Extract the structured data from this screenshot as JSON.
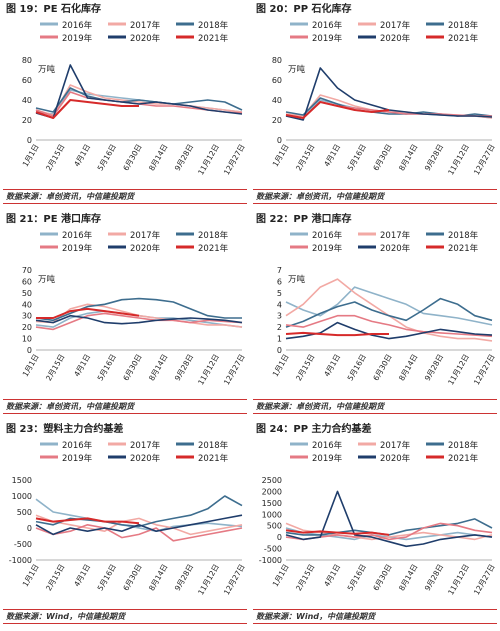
{
  "figures": [
    {
      "title": "图 19：PE 石化库存",
      "source": "数据来源：卓创资讯，中信建投期货"
    },
    {
      "title": "图 20：PP 石化库存",
      "source": "数据来源：卓创资讯，中信建投期货"
    },
    {
      "title": "图 21：PE 港口库存",
      "source": "数据来源：卓创资讯，中信建投期货"
    },
    {
      "title": "图 22：PP 港口库存",
      "source": "数据来源：卓创资讯，中信建投期货"
    },
    {
      "title": "图 23：塑料主力合约基差",
      "source": "数据来源：Wind，中信建投期货"
    },
    {
      "title": "图 24：PP 主力合约基差",
      "source": "数据来源：Wind，中信建投期货"
    }
  ],
  "colors": {
    "2016": "#8fb3c9",
    "2017": "#f2a9a4",
    "2018": "#3d6d8e",
    "2019": "#e57a84",
    "2020": "#1f3d6b",
    "2021": "#d62a2a"
  },
  "x_ticks": [
    "1月1日",
    "2月15日",
    "4月1日",
    "5月16日",
    "6月30日",
    "8月14日",
    "9月28日",
    "11月12日",
    "12月27日"
  ],
  "chart_data": [
    {
      "type": "line",
      "title": "图 19：PE 石化库存",
      "unit": "万吨",
      "ylim": [
        0,
        80
      ],
      "yticks": [
        0,
        20,
        40,
        60,
        80
      ],
      "legend_position": "top",
      "series": [
        {
          "name": "2016年",
          "values": [
            28,
            26,
            50,
            46,
            44,
            42,
            40,
            38,
            36,
            34,
            32,
            30,
            28
          ]
        },
        {
          "name": "2017年",
          "values": [
            30,
            25,
            55,
            48,
            42,
            40,
            38,
            36,
            36,
            34,
            32,
            30,
            28
          ]
        },
        {
          "name": "2018年",
          "values": [
            32,
            28,
            52,
            44,
            40,
            38,
            40,
            38,
            36,
            38,
            40,
            38,
            30
          ]
        },
        {
          "name": "2019年",
          "values": [
            30,
            24,
            48,
            42,
            40,
            38,
            36,
            34,
            34,
            32,
            30,
            28,
            27
          ]
        },
        {
          "name": "2020年",
          "values": [
            27,
            22,
            75,
            42,
            40,
            38,
            36,
            38,
            36,
            34,
            30,
            28,
            26
          ]
        },
        {
          "name": "2021年",
          "values": [
            28,
            22,
            40,
            38,
            36,
            34,
            34,
            null,
            null,
            null,
            null,
            null,
            null
          ]
        }
      ]
    },
    {
      "type": "line",
      "title": "图 20：PP 石化库存",
      "unit": "万吨",
      "ylim": [
        0,
        80
      ],
      "yticks": [
        0,
        20,
        40,
        60,
        80
      ],
      "legend_position": "top",
      "series": [
        {
          "name": "2016年",
          "values": [
            24,
            22,
            40,
            36,
            32,
            30,
            28,
            26,
            26,
            25,
            24,
            24,
            22
          ]
        },
        {
          "name": "2017年",
          "values": [
            26,
            24,
            45,
            40,
            34,
            30,
            28,
            28,
            26,
            26,
            24,
            24,
            22
          ]
        },
        {
          "name": "2018年",
          "values": [
            28,
            25,
            42,
            36,
            30,
            28,
            26,
            26,
            28,
            26,
            24,
            26,
            24
          ]
        },
        {
          "name": "2019年",
          "values": [
            25,
            22,
            38,
            34,
            32,
            30,
            28,
            26,
            26,
            26,
            25,
            24,
            24
          ]
        },
        {
          "name": "2020年",
          "values": [
            24,
            20,
            72,
            52,
            40,
            35,
            30,
            28,
            26,
            25,
            24,
            24,
            23
          ]
        },
        {
          "name": "2021年",
          "values": [
            25,
            22,
            38,
            34,
            30,
            28,
            30,
            null,
            null,
            null,
            null,
            null,
            null
          ]
        }
      ]
    },
    {
      "type": "line",
      "title": "图 21：PE 港口库存",
      "unit": "万吨",
      "ylim": [
        0,
        70
      ],
      "yticks": [
        0,
        10,
        20,
        30,
        40,
        50,
        60,
        70
      ],
      "legend_position": "top",
      "series": [
        {
          "name": "2016年",
          "values": [
            22,
            20,
            28,
            32,
            34,
            32,
            30,
            28,
            28,
            26,
            24,
            22,
            20
          ]
        },
        {
          "name": "2017年",
          "values": [
            25,
            24,
            36,
            40,
            38,
            34,
            30,
            28,
            26,
            24,
            22,
            22,
            20
          ]
        },
        {
          "name": "2018年",
          "values": [
            28,
            26,
            32,
            38,
            40,
            44,
            45,
            44,
            42,
            36,
            30,
            28,
            28
          ]
        },
        {
          "name": "2019年",
          "values": [
            20,
            18,
            24,
            30,
            32,
            30,
            28,
            26,
            26,
            24,
            26,
            25,
            24
          ]
        },
        {
          "name": "2020年",
          "values": [
            26,
            24,
            30,
            28,
            24,
            23,
            24,
            26,
            27,
            28,
            27,
            26,
            24
          ]
        },
        {
          "name": "2021年",
          "values": [
            28,
            28,
            34,
            36,
            34,
            32,
            30,
            null,
            null,
            null,
            null,
            null,
            null
          ]
        }
      ]
    },
    {
      "type": "line",
      "title": "图 22：PP 港口库存",
      "unit": "万吨",
      "ylim": [
        0,
        7
      ],
      "yticks": [
        0,
        1,
        2,
        3,
        4,
        5,
        6,
        7
      ],
      "legend_position": "top",
      "series": [
        {
          "name": "2016年",
          "values": [
            4.2,
            3.5,
            3.0,
            4.0,
            5.5,
            5.0,
            4.5,
            4.0,
            3.2,
            3.0,
            2.8,
            2.5,
            2.2
          ]
        },
        {
          "name": "2017年",
          "values": [
            3.0,
            4.0,
            5.5,
            6.2,
            5.0,
            4.0,
            3.0,
            2.0,
            1.5,
            1.2,
            1.0,
            1.0,
            0.8
          ]
        },
        {
          "name": "2018年",
          "values": [
            2.0,
            2.5,
            3.2,
            3.8,
            4.2,
            3.5,
            3.0,
            2.6,
            3.5,
            4.5,
            4.0,
            3.0,
            2.6
          ]
        },
        {
          "name": "2019年",
          "values": [
            2.2,
            2.0,
            2.5,
            3.0,
            3.0,
            2.5,
            2.2,
            1.8,
            1.6,
            1.5,
            1.4,
            1.3,
            1.2
          ]
        },
        {
          "name": "2020年",
          "values": [
            1.0,
            1.2,
            1.5,
            2.4,
            1.8,
            1.3,
            1.0,
            1.2,
            1.5,
            1.8,
            1.6,
            1.4,
            1.3
          ]
        },
        {
          "name": "2021年",
          "values": [
            1.4,
            1.5,
            1.4,
            1.3,
            1.3,
            1.4,
            1.4,
            null,
            null,
            null,
            null,
            null,
            null
          ]
        }
      ]
    },
    {
      "type": "line",
      "title": "图 23：塑料主力合约基差",
      "ylim": [
        -1000,
        1500
      ],
      "yticks": [
        -1000,
        -500,
        0,
        500,
        1000,
        1500
      ],
      "legend_position": "top",
      "series": [
        {
          "name": "2016年",
          "values": [
            900,
            500,
            400,
            300,
            200,
            100,
            0,
            -100,
            50,
            100,
            150,
            100,
            50
          ]
        },
        {
          "name": "2017年",
          "values": [
            400,
            200,
            100,
            0,
            -100,
            200,
            300,
            100,
            0,
            -200,
            -100,
            0,
            100
          ]
        },
        {
          "name": "2018年",
          "values": [
            200,
            100,
            300,
            250,
            200,
            100,
            50,
            200,
            300,
            400,
            600,
            1000,
            700
          ]
        },
        {
          "name": "2019年",
          "values": [
            0,
            -200,
            -100,
            100,
            0,
            -300,
            -200,
            0,
            -400,
            -300,
            -200,
            -100,
            0
          ]
        },
        {
          "name": "2020年",
          "values": [
            100,
            -200,
            0,
            -100,
            0,
            -100,
            100,
            -100,
            0,
            100,
            200,
            300,
            400
          ]
        },
        {
          "name": "2021年",
          "values": [
            300,
            200,
            250,
            300,
            200,
            200,
            150,
            null,
            null,
            null,
            null,
            null,
            null
          ]
        }
      ]
    },
    {
      "type": "line",
      "title": "图 24：PP 主力合约基差",
      "ylim": [
        -1000,
        2500
      ],
      "yticks": [
        -1000,
        -500,
        0,
        500,
        1000,
        1500,
        2000,
        2500
      ],
      "legend_position": "top",
      "series": [
        {
          "name": "2016年",
          "values": [
            400,
            200,
            100,
            0,
            -100,
            100,
            0,
            -100,
            0,
            100,
            200,
            100,
            0
          ]
        },
        {
          "name": "2017年",
          "values": [
            600,
            300,
            200,
            100,
            0,
            -100,
            0,
            100,
            200,
            100,
            0,
            -100,
            100
          ]
        },
        {
          "name": "2018年",
          "values": [
            200,
            100,
            100,
            200,
            300,
            200,
            100,
            300,
            400,
            500,
            600,
            800,
            400
          ]
        },
        {
          "name": "2019年",
          "values": [
            0,
            -100,
            0,
            100,
            0,
            100,
            -100,
            0,
            400,
            600,
            500,
            300,
            200
          ]
        },
        {
          "name": "2020年",
          "values": [
            100,
            -100,
            0,
            2000,
            100,
            0,
            -200,
            -400,
            -300,
            -100,
            0,
            100,
            0
          ]
        },
        {
          "name": "2021年",
          "values": [
            300,
            200,
            250,
            200,
            150,
            200,
            100,
            null,
            null,
            null,
            null,
            null,
            null
          ]
        }
      ]
    }
  ]
}
